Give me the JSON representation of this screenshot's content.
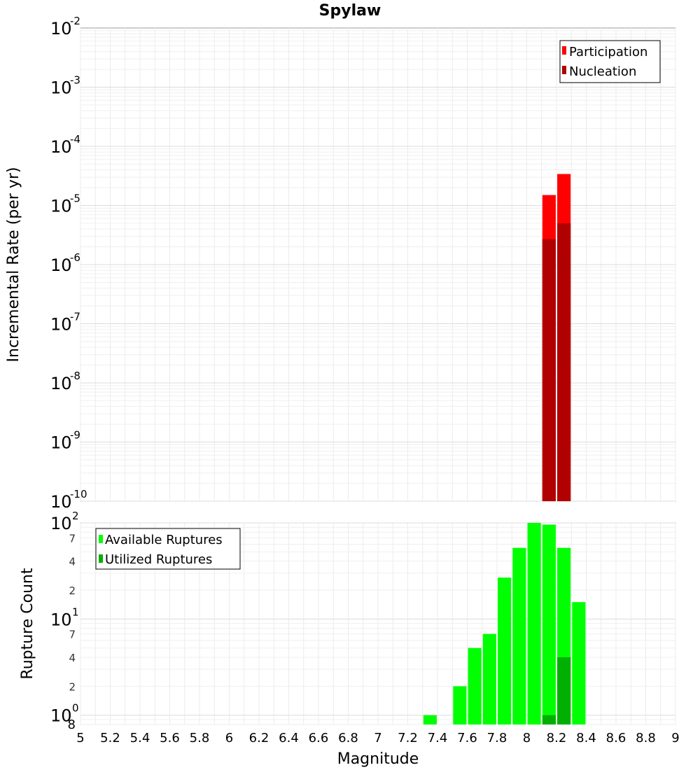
{
  "chart_data": [
    {
      "type": "bar",
      "title": "Spylaw",
      "xlabel": "",
      "ylabel": "Incremental Rate (per yr)",
      "yscale": "log",
      "ylim": [
        1e-10,
        0.01
      ],
      "xlim": [
        5,
        9
      ],
      "grid": true,
      "legend_position": "top-right",
      "y_tick_labels": [
        {
          "base": "10",
          "exp": "-10",
          "value": 1e-10
        },
        {
          "base": "10",
          "exp": "-9",
          "value": 1e-09
        },
        {
          "base": "10",
          "exp": "-8",
          "value": 1e-08
        },
        {
          "base": "10",
          "exp": "-7",
          "value": 1e-07
        },
        {
          "base": "10",
          "exp": "-6",
          "value": 1e-06
        },
        {
          "base": "10",
          "exp": "-5",
          "value": 1e-05
        },
        {
          "base": "10",
          "exp": "-4",
          "value": 0.0001
        },
        {
          "base": "10",
          "exp": "-3",
          "value": 0.001
        },
        {
          "base": "10",
          "exp": "-2",
          "value": 0.01
        }
      ],
      "series": [
        {
          "name": "Participation",
          "color": "#ff0000",
          "x": [
            8.15,
            8.25
          ],
          "values": [
            1.5e-05,
            3.4e-05
          ]
        },
        {
          "name": "Nucleation",
          "color": "#b00000",
          "x": [
            8.15,
            8.25
          ],
          "values": [
            2.7e-06,
            5e-06
          ]
        }
      ]
    },
    {
      "type": "bar",
      "title": "",
      "xlabel": "Magnitude",
      "ylabel": "Rupture Count",
      "yscale": "log",
      "ylim": [
        0.8,
        100
      ],
      "xlim": [
        5,
        9
      ],
      "grid": true,
      "legend_position": "top-left",
      "x_ticks": [
        "5",
        "5.2",
        "5.4",
        "5.6",
        "5.8",
        "6",
        "6.2",
        "6.4",
        "6.6",
        "6.8",
        "7",
        "7.2",
        "7.4",
        "7.6",
        "7.8",
        "8",
        "8.2",
        "8.4",
        "8.6",
        "8.8",
        "9"
      ],
      "y_major_labels": [
        {
          "base": "10",
          "exp": "0",
          "value": 1
        },
        {
          "base": "10",
          "exp": "1",
          "value": 10
        },
        {
          "base": "10",
          "exp": "2",
          "value": 100
        }
      ],
      "y_minor_labels": [
        {
          "label": "8",
          "value": 0.8
        },
        {
          "label": "2",
          "value": 2
        },
        {
          "label": "4",
          "value": 4
        },
        {
          "label": "7",
          "value": 7
        },
        {
          "label": "2",
          "value": 20
        },
        {
          "label": "4",
          "value": 40
        },
        {
          "label": "7",
          "value": 70
        }
      ],
      "series": [
        {
          "name": "Available Ruptures",
          "color": "#00ff00",
          "x": [
            7.35,
            7.55,
            7.65,
            7.75,
            7.85,
            7.95,
            8.05,
            8.15,
            8.25,
            8.35
          ],
          "values": [
            1,
            2,
            5,
            7,
            27,
            55,
            100,
            96,
            55,
            15
          ]
        },
        {
          "name": "Utilized Ruptures",
          "color": "#00b000",
          "x": [
            8.15,
            8.25
          ],
          "values": [
            1,
            4
          ]
        }
      ]
    }
  ]
}
